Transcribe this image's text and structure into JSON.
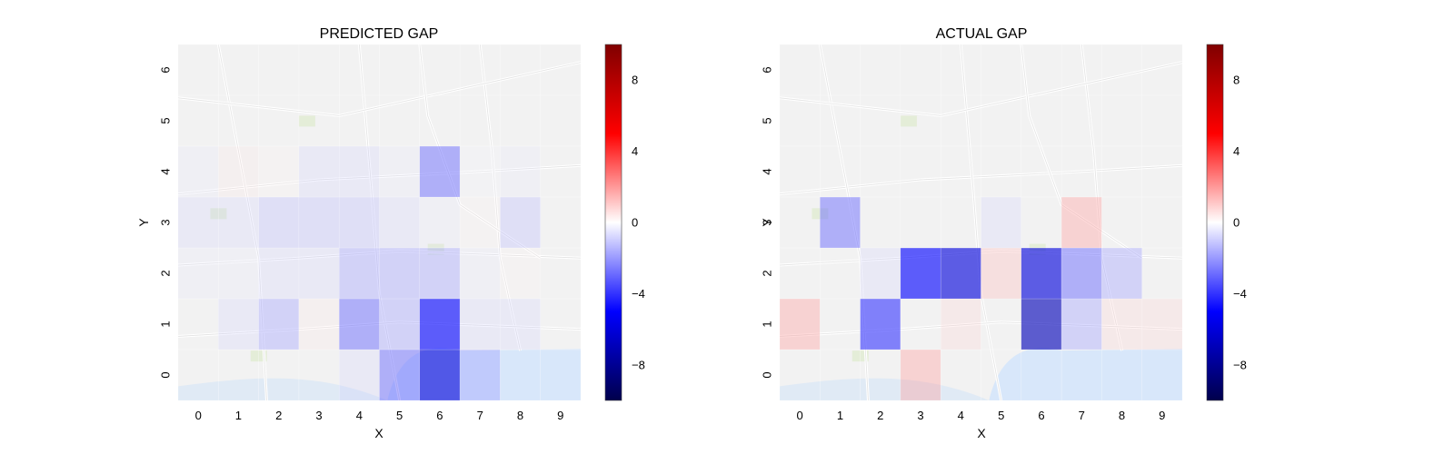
{
  "chart_data": [
    {
      "type": "heatmap",
      "title": "PREDICTED GAP",
      "xlabel": "X",
      "ylabel": "Y",
      "x_ticks": [
        "0",
        "1",
        "2",
        "3",
        "4",
        "5",
        "6",
        "7",
        "8",
        "9"
      ],
      "y_ticks": [
        "0",
        "1",
        "2",
        "3",
        "4",
        "5",
        "6"
      ],
      "xlim": [
        -0.5,
        9.5
      ],
      "ylim": [
        -0.5,
        6.5
      ],
      "colormap": "seismic",
      "clim": [
        -10,
        10
      ],
      "background": "street map",
      "cells": [
        {
          "x": 0,
          "y": 0,
          "v": 0
        },
        {
          "x": 1,
          "y": 0,
          "v": 0
        },
        {
          "x": 2,
          "y": 0,
          "v": 0
        },
        {
          "x": 3,
          "y": 0,
          "v": 0
        },
        {
          "x": 4,
          "y": 0,
          "v": -1
        },
        {
          "x": 5,
          "y": 0,
          "v": -3
        },
        {
          "x": 6,
          "y": 0,
          "v": -6
        },
        {
          "x": 7,
          "y": 0,
          "v": -2
        },
        {
          "x": 8,
          "y": 0,
          "v": 0
        },
        {
          "x": 9,
          "y": 0,
          "v": 0
        },
        {
          "x": 0,
          "y": 1,
          "v": 0
        },
        {
          "x": 1,
          "y": 1,
          "v": -1
        },
        {
          "x": 2,
          "y": 1,
          "v": -2
        },
        {
          "x": 3,
          "y": 1,
          "v": 0.5
        },
        {
          "x": 4,
          "y": 1,
          "v": -3
        },
        {
          "x": 5,
          "y": 1,
          "v": -2
        },
        {
          "x": 6,
          "y": 1,
          "v": -5
        },
        {
          "x": 7,
          "y": 1,
          "v": -1
        },
        {
          "x": 8,
          "y": 1,
          "v": -1
        },
        {
          "x": 9,
          "y": 1,
          "v": 0
        },
        {
          "x": 0,
          "y": 2,
          "v": -0.5
        },
        {
          "x": 1,
          "y": 2,
          "v": -0.5
        },
        {
          "x": 2,
          "y": 2,
          "v": -1
        },
        {
          "x": 3,
          "y": 2,
          "v": -1
        },
        {
          "x": 4,
          "y": 2,
          "v": -2
        },
        {
          "x": 5,
          "y": 2,
          "v": -2
        },
        {
          "x": 6,
          "y": 2,
          "v": -2
        },
        {
          "x": 7,
          "y": 2,
          "v": -0.5
        },
        {
          "x": 8,
          "y": 2,
          "v": 0.3
        },
        {
          "x": 9,
          "y": 2,
          "v": 0
        },
        {
          "x": 0,
          "y": 3,
          "v": -1
        },
        {
          "x": 1,
          "y": 3,
          "v": -1
        },
        {
          "x": 2,
          "y": 3,
          "v": -1.5
        },
        {
          "x": 3,
          "y": 3,
          "v": -1.5
        },
        {
          "x": 4,
          "y": 3,
          "v": -1.5
        },
        {
          "x": 5,
          "y": 3,
          "v": -1
        },
        {
          "x": 6,
          "y": 3,
          "v": -0.5
        },
        {
          "x": 7,
          "y": 3,
          "v": 0.3
        },
        {
          "x": 8,
          "y": 3,
          "v": -1.5
        },
        {
          "x": 9,
          "y": 3,
          "v": 0
        },
        {
          "x": 0,
          "y": 4,
          "v": -0.5
        },
        {
          "x": 1,
          "y": 4,
          "v": 0.5
        },
        {
          "x": 2,
          "y": 4,
          "v": 0.3
        },
        {
          "x": 3,
          "y": 4,
          "v": -1
        },
        {
          "x": 4,
          "y": 4,
          "v": -1
        },
        {
          "x": 5,
          "y": 4,
          "v": -0.5
        },
        {
          "x": 6,
          "y": 4,
          "v": -3
        },
        {
          "x": 7,
          "y": 4,
          "v": -0.3
        },
        {
          "x": 8,
          "y": 4,
          "v": -0.5
        },
        {
          "x": 9,
          "y": 4,
          "v": 0
        },
        {
          "x": 0,
          "y": 5,
          "v": 0
        },
        {
          "x": 1,
          "y": 5,
          "v": 0
        },
        {
          "x": 2,
          "y": 5,
          "v": 0
        },
        {
          "x": 3,
          "y": 5,
          "v": 0
        },
        {
          "x": 4,
          "y": 5,
          "v": 0
        },
        {
          "x": 5,
          "y": 5,
          "v": 0
        },
        {
          "x": 6,
          "y": 5,
          "v": 0
        },
        {
          "x": 7,
          "y": 5,
          "v": 0
        },
        {
          "x": 8,
          "y": 5,
          "v": 0
        },
        {
          "x": 9,
          "y": 5,
          "v": 0
        },
        {
          "x": 0,
          "y": 6,
          "v": 0
        },
        {
          "x": 1,
          "y": 6,
          "v": 0
        },
        {
          "x": 2,
          "y": 6,
          "v": 0
        },
        {
          "x": 3,
          "y": 6,
          "v": 0
        },
        {
          "x": 4,
          "y": 6,
          "v": 0
        },
        {
          "x": 5,
          "y": 6,
          "v": 0
        },
        {
          "x": 6,
          "y": 6,
          "v": 0
        },
        {
          "x": 7,
          "y": 6,
          "v": 0
        },
        {
          "x": 8,
          "y": 6,
          "v": 0
        },
        {
          "x": 9,
          "y": 6,
          "v": 0
        }
      ]
    },
    {
      "type": "heatmap",
      "title": "ACTUAL GAP",
      "xlabel": "X",
      "ylabel": "Y",
      "x_ticks": [
        "0",
        "1",
        "2",
        "3",
        "4",
        "5",
        "6",
        "7",
        "8",
        "9"
      ],
      "y_ticks": [
        "0",
        "1",
        "2",
        "3",
        "4",
        "5",
        "6"
      ],
      "xlim": [
        -0.5,
        9.5
      ],
      "ylim": [
        -0.5,
        6.5
      ],
      "colormap": "seismic",
      "clim": [
        -10,
        10
      ],
      "background": "street map",
      "cells": [
        {
          "x": 0,
          "y": 0,
          "v": 0
        },
        {
          "x": 1,
          "y": 0,
          "v": 0
        },
        {
          "x": 2,
          "y": 0,
          "v": 0
        },
        {
          "x": 3,
          "y": 0,
          "v": 2
        },
        {
          "x": 4,
          "y": 0,
          "v": 0
        },
        {
          "x": 5,
          "y": 0,
          "v": 0
        },
        {
          "x": 6,
          "y": 0,
          "v": 0
        },
        {
          "x": 7,
          "y": 0,
          "v": 0
        },
        {
          "x": 8,
          "y": 0,
          "v": 0
        },
        {
          "x": 9,
          "y": 0,
          "v": 0
        },
        {
          "x": 0,
          "y": 1,
          "v": 2
        },
        {
          "x": 1,
          "y": 1,
          "v": 0
        },
        {
          "x": 2,
          "y": 1,
          "v": -4
        },
        {
          "x": 3,
          "y": 1,
          "v": 0
        },
        {
          "x": 4,
          "y": 1,
          "v": 1
        },
        {
          "x": 5,
          "y": 1,
          "v": 0
        },
        {
          "x": 6,
          "y": 1,
          "v": -7
        },
        {
          "x": 7,
          "y": 1,
          "v": -2
        },
        {
          "x": 8,
          "y": 1,
          "v": 1
        },
        {
          "x": 9,
          "y": 1,
          "v": 1
        },
        {
          "x": 0,
          "y": 2,
          "v": 0
        },
        {
          "x": 1,
          "y": 2,
          "v": 0
        },
        {
          "x": 2,
          "y": 2,
          "v": -1
        },
        {
          "x": 3,
          "y": 2,
          "v": -5
        },
        {
          "x": 4,
          "y": 2,
          "v": -6
        },
        {
          "x": 5,
          "y": 2,
          "v": 1.5
        },
        {
          "x": 6,
          "y": 2,
          "v": -6
        },
        {
          "x": 7,
          "y": 2,
          "v": -3
        },
        {
          "x": 8,
          "y": 2,
          "v": -2
        },
        {
          "x": 9,
          "y": 2,
          "v": 0
        },
        {
          "x": 0,
          "y": 3,
          "v": 0
        },
        {
          "x": 1,
          "y": 3,
          "v": -3
        },
        {
          "x": 2,
          "y": 3,
          "v": 0
        },
        {
          "x": 3,
          "y": 3,
          "v": 0
        },
        {
          "x": 4,
          "y": 3,
          "v": 0
        },
        {
          "x": 5,
          "y": 3,
          "v": -1
        },
        {
          "x": 6,
          "y": 3,
          "v": 0
        },
        {
          "x": 7,
          "y": 3,
          "v": 2
        },
        {
          "x": 8,
          "y": 3,
          "v": 0
        },
        {
          "x": 9,
          "y": 3,
          "v": 0
        },
        {
          "x": 0,
          "y": 4,
          "v": 0
        },
        {
          "x": 1,
          "y": 4,
          "v": 0
        },
        {
          "x": 2,
          "y": 4,
          "v": 0
        },
        {
          "x": 3,
          "y": 4,
          "v": 0
        },
        {
          "x": 4,
          "y": 4,
          "v": 0
        },
        {
          "x": 5,
          "y": 4,
          "v": 0
        },
        {
          "x": 6,
          "y": 4,
          "v": 0
        },
        {
          "x": 7,
          "y": 4,
          "v": 0
        },
        {
          "x": 8,
          "y": 4,
          "v": 0
        },
        {
          "x": 9,
          "y": 4,
          "v": 0
        },
        {
          "x": 0,
          "y": 5,
          "v": 0
        },
        {
          "x": 1,
          "y": 5,
          "v": 0
        },
        {
          "x": 2,
          "y": 5,
          "v": 0
        },
        {
          "x": 3,
          "y": 5,
          "v": 0
        },
        {
          "x": 4,
          "y": 5,
          "v": 0
        },
        {
          "x": 5,
          "y": 5,
          "v": 0
        },
        {
          "x": 6,
          "y": 5,
          "v": 0
        },
        {
          "x": 7,
          "y": 5,
          "v": 0
        },
        {
          "x": 8,
          "y": 5,
          "v": 0
        },
        {
          "x": 9,
          "y": 5,
          "v": 0
        },
        {
          "x": 0,
          "y": 6,
          "v": 0
        },
        {
          "x": 1,
          "y": 6,
          "v": 0
        },
        {
          "x": 2,
          "y": 6,
          "v": 0
        },
        {
          "x": 3,
          "y": 6,
          "v": 0
        },
        {
          "x": 4,
          "y": 6,
          "v": 0
        },
        {
          "x": 5,
          "y": 6,
          "v": 0
        },
        {
          "x": 6,
          "y": 6,
          "v": 0
        },
        {
          "x": 7,
          "y": 6,
          "v": 0
        },
        {
          "x": 8,
          "y": 6,
          "v": 0
        },
        {
          "x": 9,
          "y": 6,
          "v": 0
        }
      ]
    }
  ],
  "colorbar": {
    "ticks": [
      "8",
      "4",
      "0",
      "−4",
      "−8"
    ],
    "tick_values": [
      8,
      4,
      0,
      -4,
      -8
    ]
  }
}
